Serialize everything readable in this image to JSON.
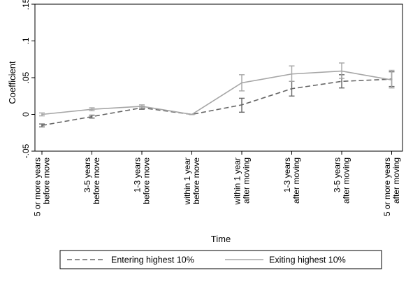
{
  "chart_data": {
    "type": "line",
    "xlabel": "Time",
    "ylabel": "Coefficient",
    "ylim": [
      -0.05,
      0.15
    ],
    "yticks": [
      -0.05,
      0,
      0.05,
      0.1,
      0.15
    ],
    "ytick_labels": [
      "-.05",
      "0",
      ".05",
      ".1",
      ".15"
    ],
    "categories": [
      [
        "5 or more years",
        "before move"
      ],
      [
        "3-5 years",
        "before move"
      ],
      [
        "1-3 years",
        "before move"
      ],
      [
        "within 1 year",
        "before move"
      ],
      [
        "within 1 year",
        "after moving"
      ],
      [
        "1-3 years",
        "after moving"
      ],
      [
        "3-5 years",
        "after moving"
      ],
      [
        "5 or more years",
        "after moving"
      ]
    ],
    "series": [
      {
        "name": "Entering highest 10%",
        "style": "dashed",
        "color": "#666666",
        "values": [
          -0.015,
          -0.003,
          0.009,
          0.0,
          0.013,
          0.035,
          0.045,
          0.048
        ],
        "ci_low": [
          -0.017,
          -0.005,
          0.007,
          0.0,
          0.003,
          0.025,
          0.036,
          0.038
        ],
        "ci_high": [
          -0.013,
          -0.001,
          0.011,
          0.0,
          0.022,
          0.045,
          0.054,
          0.058
        ]
      },
      {
        "name": "Exiting highest 10%",
        "style": "solid",
        "color": "#a6a6a6",
        "values": [
          0.0,
          0.007,
          0.011,
          0.0,
          0.043,
          0.055,
          0.059,
          0.047
        ],
        "ci_low": [
          -0.002,
          0.005,
          0.009,
          0.0,
          0.032,
          0.045,
          0.049,
          0.036
        ],
        "ci_high": [
          0.002,
          0.009,
          0.013,
          0.0,
          0.054,
          0.066,
          0.07,
          0.06
        ]
      }
    ],
    "grid": false,
    "legend_position": "bottom"
  }
}
